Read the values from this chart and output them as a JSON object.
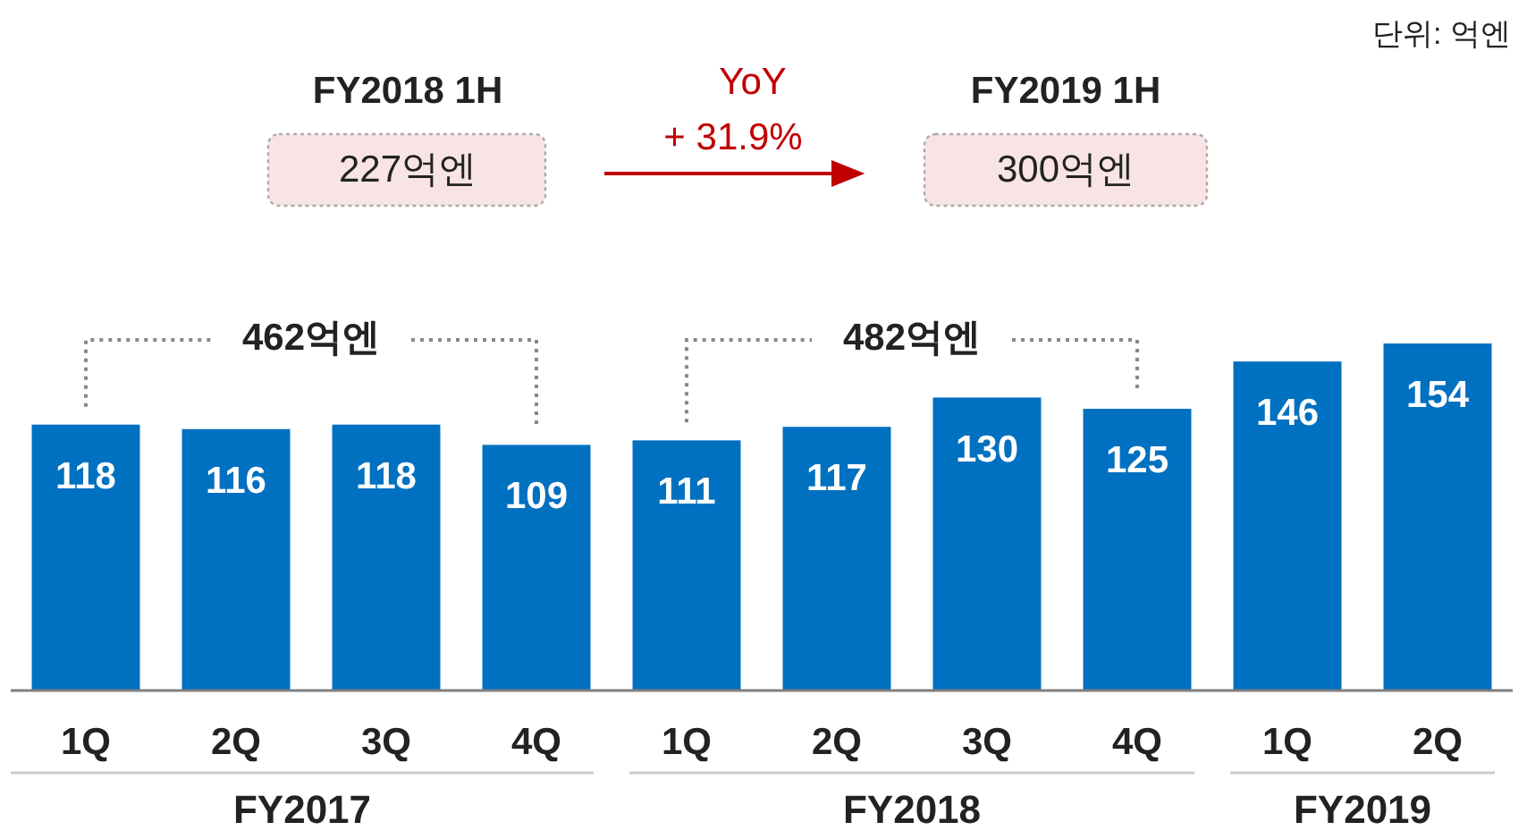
{
  "chart_data": {
    "type": "bar",
    "categories": [
      "1Q",
      "2Q",
      "3Q",
      "4Q",
      "1Q",
      "2Q",
      "3Q",
      "4Q",
      "1Q",
      "2Q"
    ],
    "values": [
      118,
      116,
      118,
      109,
      111,
      117,
      130,
      125,
      146,
      154
    ],
    "color": "#0070c0",
    "data_labels": true,
    "annotations": [
      "단위: 억엔",
      "FY2018 1H",
      "227억엔",
      "YoY",
      "+ 31.9%",
      "FY2019 1H",
      "300억엔",
      "462억엔",
      "482억엔",
      "FY2017",
      "FY2018",
      "FY2019"
    ]
  }
}
